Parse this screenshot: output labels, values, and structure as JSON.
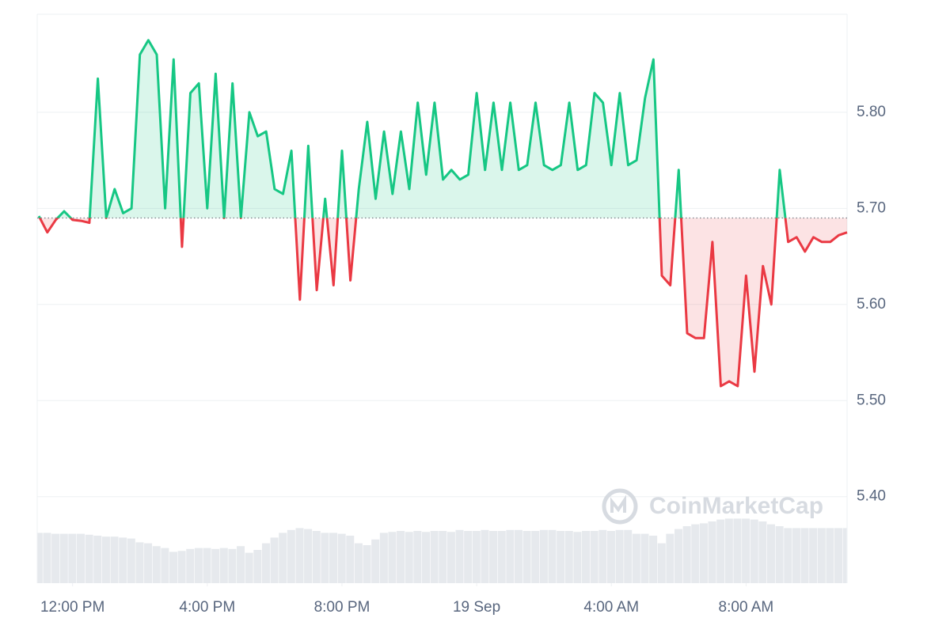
{
  "chart_data": {
    "type": "line",
    "watermark": "CoinMarketCap",
    "x": [
      11,
      11.25,
      11.5,
      11.75,
      12,
      12.25,
      12.5,
      12.75,
      13,
      13.25,
      13.5,
      13.75,
      14,
      14.25,
      14.5,
      14.75,
      15,
      15.25,
      15.5,
      15.75,
      16,
      16.25,
      16.5,
      16.75,
      17,
      17.25,
      17.5,
      17.75,
      18,
      18.25,
      18.5,
      18.75,
      19,
      19.25,
      19.5,
      19.75,
      20,
      20.25,
      20.5,
      20.75,
      21,
      21.25,
      21.5,
      21.75,
      22,
      22.25,
      22.5,
      22.75,
      23,
      23.25,
      23.5,
      23.75,
      24,
      24.25,
      24.5,
      24.75,
      25,
      25.25,
      25.5,
      25.75,
      26,
      26.25,
      26.5,
      26.75,
      27,
      27.25,
      27.5,
      27.75,
      28,
      28.25,
      28.5,
      28.75,
      29,
      29.25,
      29.5,
      29.75,
      30,
      30.25,
      30.5,
      30.75,
      31,
      31.25,
      31.5,
      31.75,
      32,
      32.25,
      32.5,
      32.75,
      33,
      33.25,
      33.5,
      33.75,
      34,
      34.25,
      34.5,
      34.75,
      35
    ],
    "series": [
      {
        "name": "Price",
        "color_up": "#16c784",
        "color_down": "#ea3943",
        "values": [
          5.692,
          5.675,
          5.688,
          5.697,
          5.688,
          5.687,
          5.685,
          5.835,
          5.69,
          5.72,
          5.695,
          5.7,
          5.86,
          5.875,
          5.86,
          5.7,
          5.855,
          5.66,
          5.82,
          5.83,
          5.7,
          5.84,
          5.69,
          5.83,
          5.69,
          5.8,
          5.775,
          5.78,
          5.72,
          5.715,
          5.76,
          5.605,
          5.765,
          5.615,
          5.71,
          5.62,
          5.76,
          5.625,
          5.72,
          5.79,
          5.71,
          5.78,
          5.715,
          5.78,
          5.72,
          5.81,
          5.735,
          5.81,
          5.73,
          5.74,
          5.73,
          5.735,
          5.82,
          5.74,
          5.81,
          5.74,
          5.81,
          5.74,
          5.745,
          5.81,
          5.745,
          5.74,
          5.745,
          5.81,
          5.74,
          5.745,
          5.82,
          5.81,
          5.745,
          5.82,
          5.745,
          5.75,
          5.815,
          5.855,
          5.63,
          5.62,
          5.74,
          5.57,
          5.565,
          5.565,
          5.665,
          5.515,
          5.52,
          5.515,
          5.63,
          5.53,
          5.64,
          5.6,
          5.74,
          5.665,
          5.67,
          5.655,
          5.67,
          5.665,
          5.665,
          5.672,
          5.675
        ]
      },
      {
        "name": "Volume",
        "color": "#e6e9ed",
        "values": [
          53,
          53,
          52,
          52,
          52,
          52,
          51,
          50,
          49,
          49,
          48,
          47,
          43,
          42,
          39,
          37,
          33,
          34,
          36,
          37,
          37,
          36,
          37,
          36,
          39,
          32,
          35,
          42,
          48,
          53,
          56,
          58,
          57,
          55,
          53,
          53,
          52,
          50,
          42,
          40,
          46,
          53,
          54,
          55,
          54,
          55,
          54,
          55,
          55,
          54,
          56,
          55,
          55,
          56,
          55,
          55,
          56,
          56,
          55,
          55,
          56,
          56,
          55,
          55,
          54,
          55,
          55,
          56,
          55,
          56,
          56,
          52,
          52,
          50,
          42,
          52,
          57,
          60,
          62,
          63,
          65,
          67,
          68,
          68,
          68,
          67,
          65,
          62,
          60,
          58,
          58,
          58,
          58,
          58,
          58,
          58,
          58
        ]
      }
    ],
    "reference_value": 5.69,
    "xlim": [
      10.95,
      35.0
    ],
    "xticks": [
      {
        "value": 12,
        "label": "12:00 PM"
      },
      {
        "value": 16,
        "label": "4:00 PM"
      },
      {
        "value": 20,
        "label": "8:00 PM"
      },
      {
        "value": 24,
        "label": "19 Sep"
      },
      {
        "value": 28,
        "label": "4:00 AM"
      },
      {
        "value": 32,
        "label": "8:00 AM"
      }
    ],
    "ylim": [
      5.31,
      5.902
    ],
    "yticks": [
      {
        "value": 5.4,
        "label": "5.40"
      },
      {
        "value": 5.5,
        "label": "5.50"
      },
      {
        "value": 5.6,
        "label": "5.60"
      },
      {
        "value": 5.7,
        "label": "5.70"
      },
      {
        "value": 5.8,
        "label": "5.80"
      }
    ],
    "volume_lim": [
      0,
      100
    ],
    "grid": true
  }
}
